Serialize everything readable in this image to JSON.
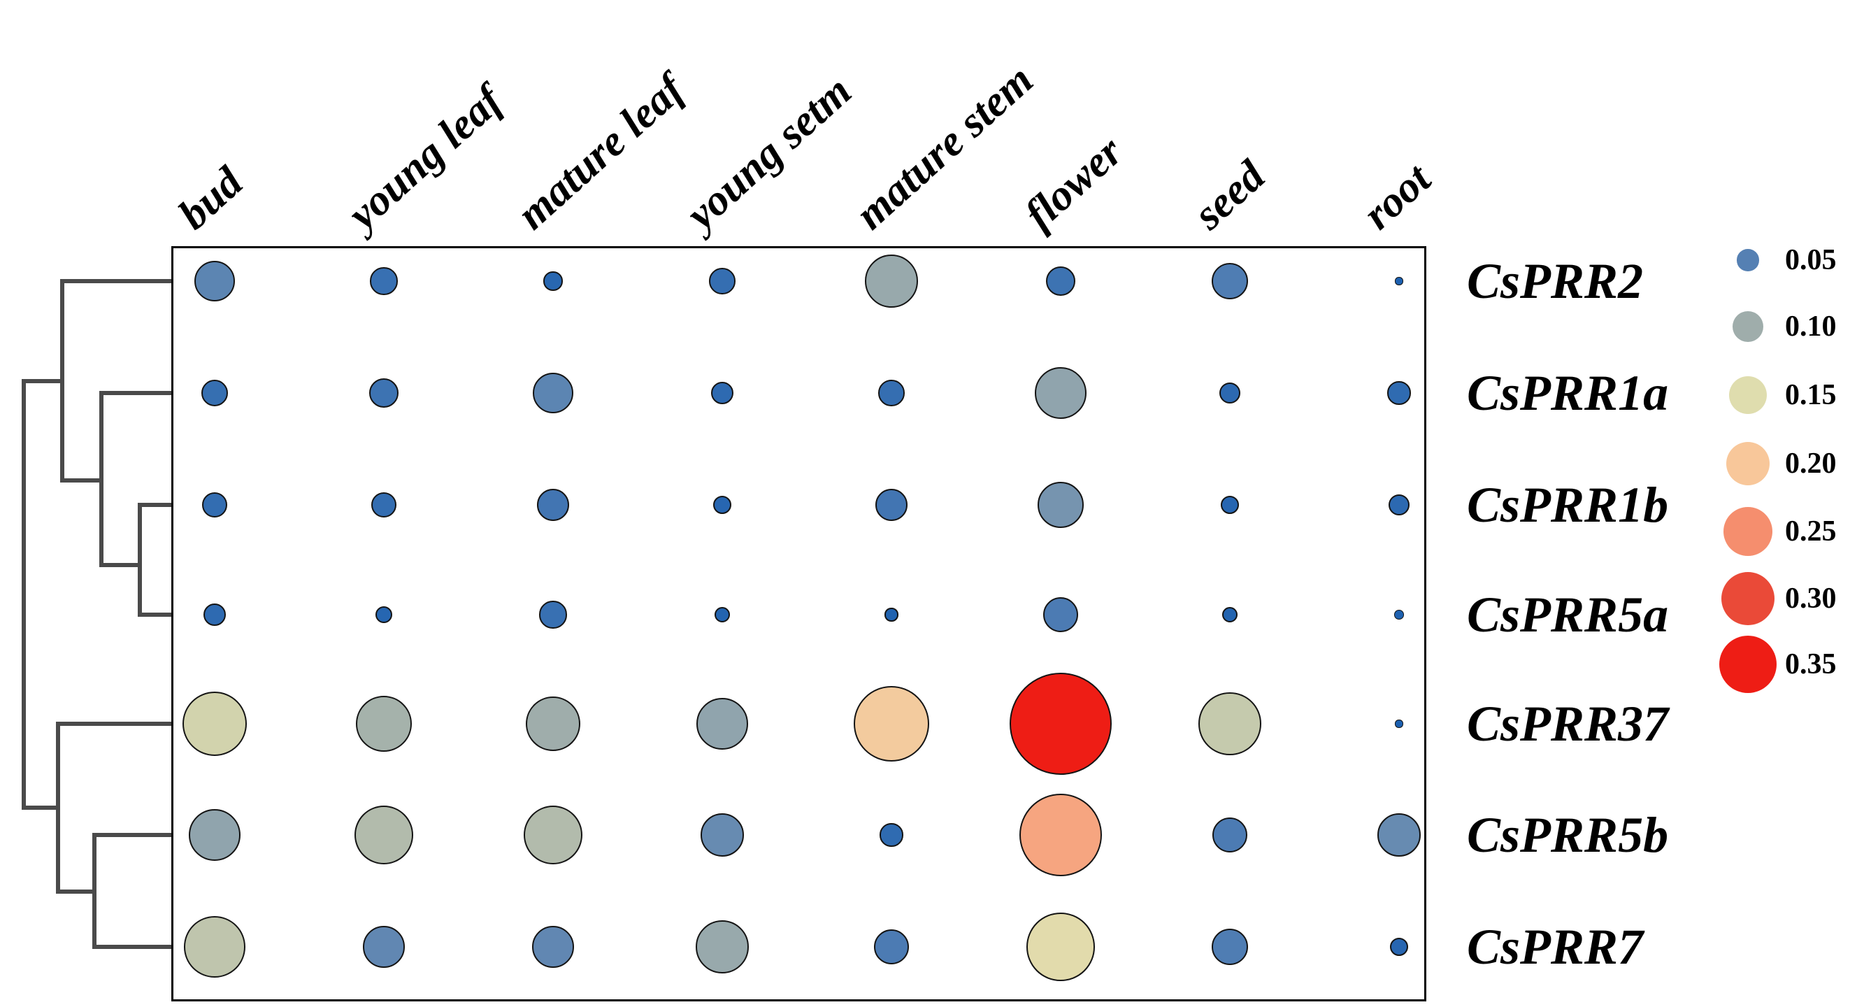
{
  "chart_data": {
    "type": "heatmap",
    "subtype": "bubble-matrix-with-dendrogram",
    "title": "",
    "columns": [
      "bud",
      "young leaf",
      "mature leaf",
      "young setm",
      "mature stem",
      "flower",
      "seed",
      "root"
    ],
    "rows": [
      "CsPRR2",
      "CsPRR1a",
      "CsPRR1b",
      "CsPRR5a",
      "CsPRR37",
      "CsPRR5b",
      "CsPRR7"
    ],
    "values": [
      [
        0.055,
        0.025,
        0.012,
        0.023,
        0.095,
        0.03,
        0.045,
        0.002
      ],
      [
        0.024,
        0.03,
        0.055,
        0.017,
        0.023,
        0.09,
        0.015,
        0.018
      ],
      [
        0.021,
        0.021,
        0.034,
        0.011,
        0.034,
        0.072,
        0.011,
        0.015
      ],
      [
        0.017,
        0.01,
        0.025,
        0.008,
        0.006,
        0.042,
        0.008,
        0.003
      ],
      [
        0.14,
        0.105,
        0.1,
        0.09,
        0.19,
        0.35,
        0.13,
        0.002
      ],
      [
        0.09,
        0.115,
        0.115,
        0.062,
        0.018,
        0.23,
        0.042,
        0.062
      ],
      [
        0.125,
        0.058,
        0.058,
        0.095,
        0.042,
        0.155,
        0.045,
        0.011
      ]
    ],
    "value_scale_note": "bubble area proportional to value",
    "legend": {
      "position": "right",
      "values": [
        0.05,
        0.1,
        0.15,
        0.2,
        0.25,
        0.3,
        0.35
      ],
      "labels": [
        "0.05",
        "0.10",
        "0.15",
        "0.20",
        "0.25",
        "0.30",
        "0.35"
      ]
    },
    "colormap": {
      "domain": [
        0.0,
        0.05,
        0.1,
        0.15,
        0.2,
        0.25,
        0.3,
        0.35
      ],
      "colors": [
        "#1a5fb0",
        "#5580b3",
        "#9fadab",
        "#dfddae",
        "#f8c79a",
        "#f58e6e",
        "#ea4a38",
        "#ee1d15"
      ]
    },
    "dendrogram": {
      "side": "left",
      "topology": "((CsPRR2,(CsPRR1a,(CsPRR1b,CsPRR5a))),(CsPRR37,(CsPRR5b,CsPRR7)))"
    },
    "grid": false,
    "plot_border": true
  }
}
